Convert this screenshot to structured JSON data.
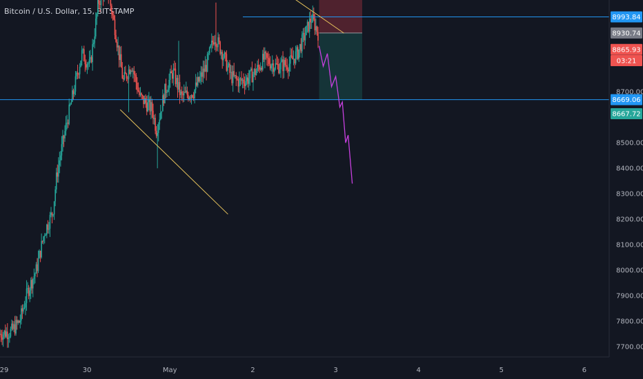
{
  "header": {
    "symbol_title": "Bitcoin / U.S. Dollar, 15, BITSTAMP"
  },
  "chart_data": {
    "type": "candlestick",
    "title": "Bitcoin / U.S. Dollar, 15, BITSTAMP",
    "y_ticks": [
      7700,
      7800,
      7900,
      8000,
      8100,
      8200,
      8300,
      8400,
      8500,
      8700
    ],
    "ylim": [
      7660,
      9060
    ],
    "x_ticks": [
      {
        "label": "29",
        "t": 0.0
      },
      {
        "label": "30",
        "t": 1.0
      },
      {
        "label": "May",
        "t": 2.0
      },
      {
        "label": "2",
        "t": 3.0
      },
      {
        "label": "3",
        "t": 4.0
      },
      {
        "label": "4",
        "t": 5.0
      },
      {
        "label": "5",
        "t": 6.0
      },
      {
        "label": "6",
        "t": 7.0
      }
    ],
    "xlim": [
      -0.05,
      7.3
    ],
    "price_path": [
      [
        -0.05,
        7750
      ],
      [
        0.1,
        7760
      ],
      [
        0.2,
        7800
      ],
      [
        0.3,
        7920
      ],
      [
        0.4,
        8000
      ],
      [
        0.5,
        8150
      ],
      [
        0.6,
        8230
      ],
      [
        0.65,
        8380
      ],
      [
        0.75,
        8550
      ],
      [
        0.85,
        8700
      ],
      [
        0.95,
        8850
      ],
      [
        1.05,
        8800
      ],
      [
        1.15,
        9050
      ],
      [
        1.25,
        9120
      ],
      [
        1.35,
        8950
      ],
      [
        1.45,
        8740
      ],
      [
        1.55,
        8810
      ],
      [
        1.65,
        8680
      ],
      [
        1.8,
        8630
      ],
      [
        1.85,
        8550
      ],
      [
        1.95,
        8700
      ],
      [
        2.05,
        8780
      ],
      [
        2.15,
        8680
      ],
      [
        2.3,
        8700
      ],
      [
        2.45,
        8800
      ],
      [
        2.55,
        8920
      ],
      [
        2.65,
        8850
      ],
      [
        2.75,
        8760
      ],
      [
        2.85,
        8740
      ],
      [
        2.95,
        8750
      ],
      [
        3.05,
        8780
      ],
      [
        3.15,
        8830
      ],
      [
        3.3,
        8800
      ],
      [
        3.45,
        8810
      ],
      [
        3.55,
        8850
      ],
      [
        3.65,
        8930
      ],
      [
        3.72,
        8990
      ],
      [
        3.78,
        8950
      ],
      [
        3.8,
        8930
      ]
    ],
    "spikes": [
      {
        "t": 1.5,
        "low": 8620
      },
      {
        "t": 1.85,
        "low": 8400
      },
      {
        "t": 2.1,
        "high": 8900
      },
      {
        "t": 2.55,
        "high": 9050
      },
      {
        "t": 3.8,
        "low": 8850
      }
    ],
    "horizontal_levels": [
      {
        "price": 8993.84,
        "t_start": 2.88,
        "color": "#2196f3"
      },
      {
        "price": 8669.06,
        "t_start": -0.05,
        "color": "#2196f3"
      }
    ],
    "trendlines": [
      {
        "points": [
          [
            1.4,
            8630
          ],
          [
            2.7,
            8220
          ]
        ],
        "color": "#e8c45c"
      },
      {
        "points": [
          [
            3.3,
            9110
          ],
          [
            4.1,
            8930
          ]
        ],
        "color": "#e8c45c"
      }
    ],
    "position_tool": {
      "t_start": 3.8,
      "t_end": 4.32,
      "stop_price": 9110,
      "entry_price": 8930.74,
      "target_price": 8669.06
    },
    "projection_path": [
      [
        3.8,
        8880
      ],
      [
        3.85,
        8800
      ],
      [
        3.9,
        8850
      ],
      [
        3.95,
        8720
      ],
      [
        4.0,
        8760
      ],
      [
        4.05,
        8640
      ],
      [
        4.08,
        8660
      ],
      [
        4.12,
        8500
      ],
      [
        4.15,
        8530
      ],
      [
        4.2,
        8340
      ]
    ],
    "price_badges": [
      {
        "label": "8993.84",
        "price": 8993.84,
        "bg": "#2196f3",
        "fg": "#ffffff"
      },
      {
        "label": "8930.74",
        "price": 8930.74,
        "bg": "#787b86",
        "fg": "#ffffff"
      },
      {
        "label": "8865.93",
        "price": 8865.93,
        "bg": "#ef5350",
        "fg": "#ffffff"
      },
      {
        "label": "03:21",
        "price": 8822,
        "bg": "#ef5350",
        "fg": "#ffffff"
      },
      {
        "label": "8669.06",
        "price": 8669.06,
        "bg": "#2196f3",
        "fg": "#ffffff"
      },
      {
        "label": "8667.72",
        "price": 8614,
        "bg": "#26a69a",
        "fg": "#ffffff"
      }
    ],
    "colors": {
      "background": "#131722",
      "up": "#26a69a",
      "down": "#ef5350",
      "projection": "#c840e0",
      "stop_zone": "#5a2530",
      "target_zone": "#16373b"
    }
  }
}
